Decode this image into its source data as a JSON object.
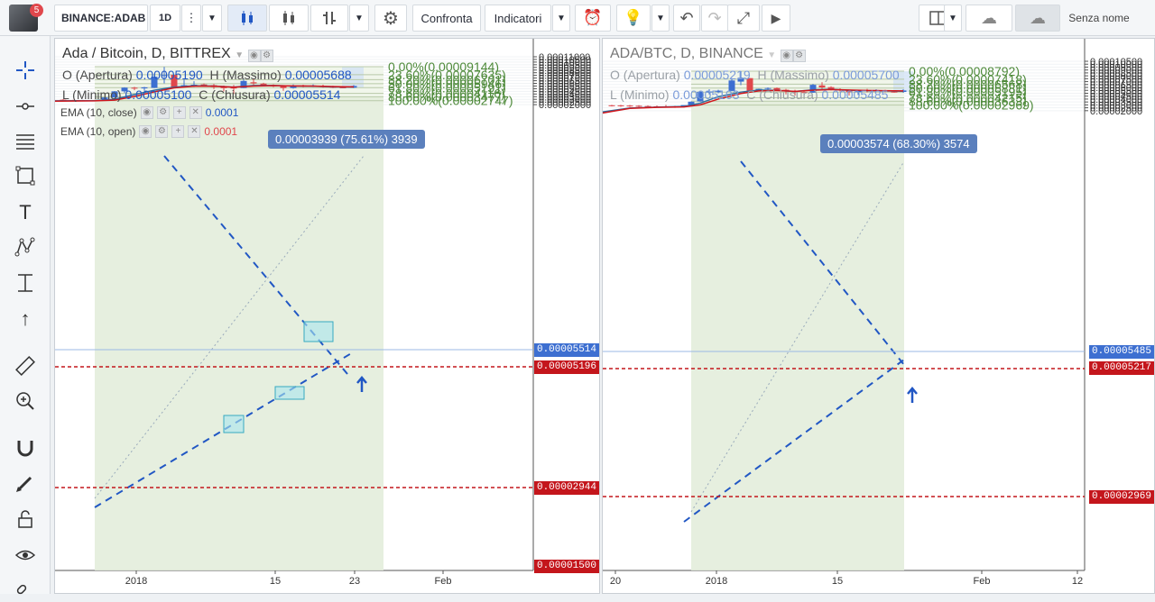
{
  "toolbar": {
    "symbol": "BINANCE:ADAB",
    "interval": "1D",
    "compare_label": "Confronta",
    "indicators_label": "Indicatori",
    "layout_name": "Senza nome",
    "notification_count": "5"
  },
  "left_pane": {
    "title": "Ada / Bitcoin, D, BITTREX",
    "open_label": "O (Apertura)",
    "open": "0.00005190",
    "high_label": "H (Massimo)",
    "high": "0.00005688",
    "low_label": "L (Minimo)",
    "low": "0.00005100",
    "close_label": "C (Chiusura)",
    "close": "0.00005514",
    "ema1_label": "EMA (10, close)",
    "ema1_value": "0.0001",
    "ema2_label": "EMA (10, open)",
    "ema2_value": "0.0001",
    "measure_tip": "0.00003939 (75.61%) 3939",
    "price_tag_current": "0.00005514",
    "price_tag_line": "0.00005196",
    "price_tag_bottom": "0.00002944",
    "price_tag_edge": "0.00001500",
    "y_ticks": [
      "0.00011000",
      "0.00010500",
      "0.00010000",
      "0.00009500",
      "0.00009000",
      "0.00008500",
      "0.00008000",
      "0.00007500",
      "0.00007000",
      "0.00006500",
      "0.00006000",
      "0.00005500",
      "0.00005000",
      "0.00004500",
      "0.00004000",
      "0.00003500",
      "0.00003000",
      "0.00002500",
      "0.00002000"
    ],
    "x_ticks": [
      "2018",
      "15",
      "23",
      "Feb"
    ],
    "fib_levels": [
      "0.00%(0.00009144)",
      "23.60%(0.00007635)",
      "38.20%(0.00006701)",
      "50.00%(0.00005946)",
      "61.80%(0.00005191)",
      "78.60%(0.00004116)",
      "88.60%(0.00003477)",
      "100.00%(0.00002747)"
    ]
  },
  "right_pane": {
    "title": "ADA/BTC, D, BINANCE",
    "open_label": "O (Apertura)",
    "open": "0.00005219",
    "high_label": "H (Massimo)",
    "high": "0.00005700",
    "low_label": "L (Minimo)",
    "low": "0.00005103",
    "close_label": "C (Chiusura)",
    "close": "0.00005485",
    "measure_tip": "0.00003574 (68.30%) 3574",
    "price_tag_current": "0.00005485",
    "price_tag_line": "0.00005217",
    "price_tag_bottom": "0.00002969",
    "y_ticks": [
      "0.00010500",
      "0.00010000",
      "0.00009500",
      "0.00009000",
      "0.00008500",
      "0.00008000",
      "0.00007500",
      "0.00007000",
      "0.00006500",
      "0.00006000",
      "0.00005500",
      "0.00005000",
      "0.00004500",
      "0.00004000",
      "0.00003500",
      "0.00003000",
      "0.00002500",
      "0.00002000"
    ],
    "x_ticks": [
      "20",
      "2018",
      "15",
      "Feb",
      "12"
    ],
    "fib_levels": [
      "0.00%(0.00008792)",
      "23.60%(0.00007418)",
      "38.20%(0.00006568)",
      "50.00%(0.00005881)",
      "61.80%(0.00005195)",
      "78.60%(0.00004215)",
      "88.60%(0.00003633)",
      "100.00%(0.00002969)"
    ]
  },
  "colors": {
    "up": "#3d6fd1",
    "down": "#e0474c",
    "fib": "#4e8a3a",
    "trend": "#2157c4",
    "dashed_red": "#c4161c"
  }
}
